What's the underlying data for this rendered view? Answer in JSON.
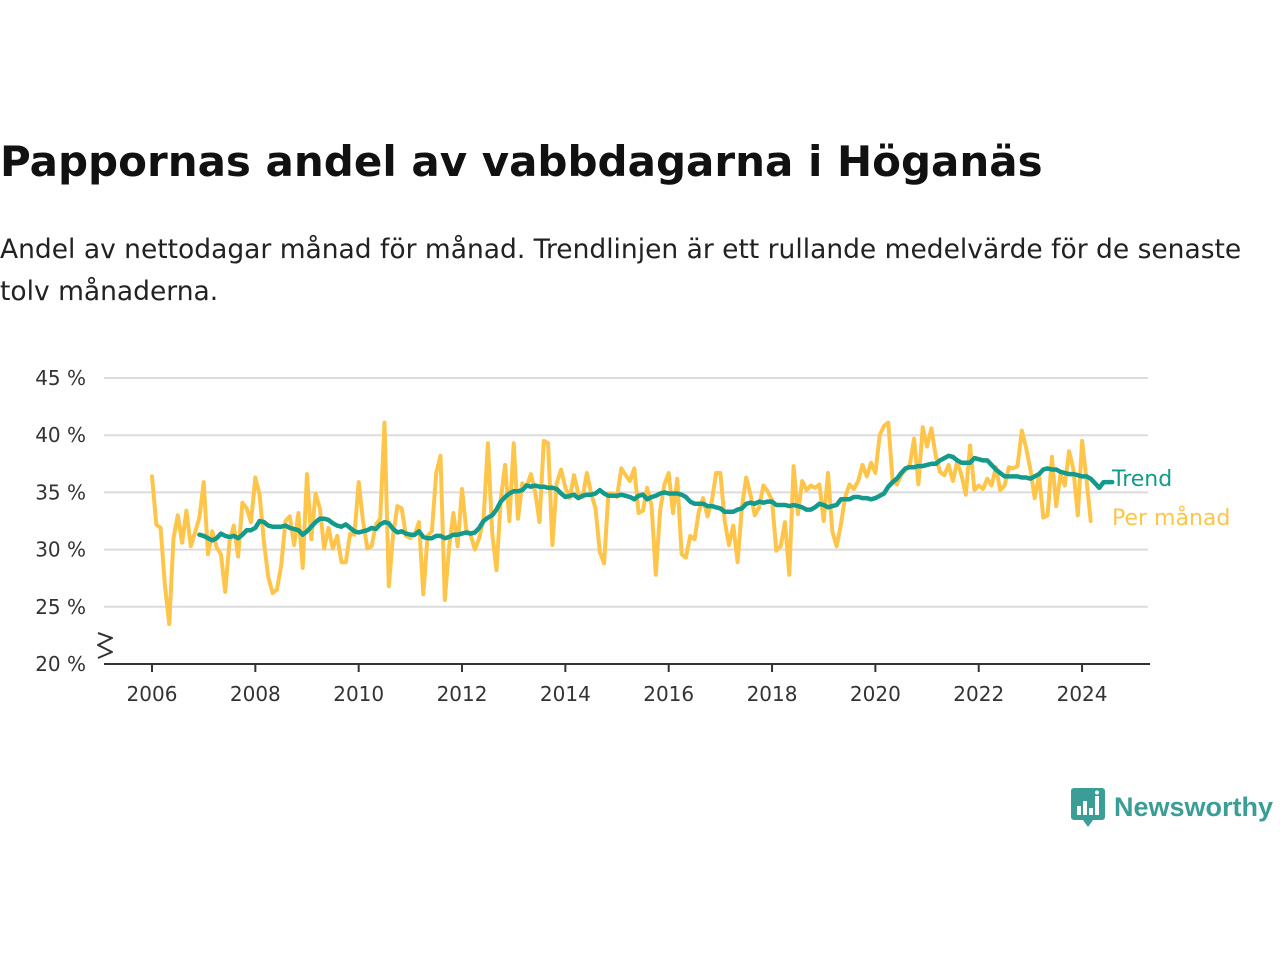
{
  "header": {
    "title": "Pappornas andel av vabbdagarna i Höganäs",
    "subtitle": "Andel av nettodagar månad för månad. Trendlinjen är ett rullande medelvärde för de senaste tolv månaderna."
  },
  "brand": {
    "name": "Newsworthy",
    "icon": "newsworthy-logo-icon",
    "color": "#3a9e96"
  },
  "chart_data": {
    "type": "line",
    "xlabel": "",
    "ylabel": "",
    "ylim": [
      20,
      45
    ],
    "y_axis_break": true,
    "grid": true,
    "y_ticks": [
      20,
      25,
      30,
      35,
      40,
      45
    ],
    "y_tick_labels": [
      "20 %",
      "25 %",
      "30 %",
      "35 %",
      "40 %",
      "45 %"
    ],
    "x_ticks": [
      2006,
      2008,
      2010,
      2012,
      2014,
      2016,
      2018,
      2020,
      2022,
      2024
    ],
    "x_tick_labels": [
      "2006",
      "2008",
      "2010",
      "2012",
      "2014",
      "2016",
      "2018",
      "2020",
      "2022",
      "2024"
    ],
    "x_start": 2006.0,
    "x_step": 0.0833333,
    "legend": "inline-right",
    "series": [
      {
        "name": "Trend",
        "color": "#139a8c",
        "start_index": 11,
        "values": [
          31.3,
          31.2,
          31.0,
          30.8,
          31.0,
          31.4,
          31.2,
          31.1,
          31.2,
          31.0,
          31.3,
          31.7,
          31.7,
          31.9,
          32.5,
          32.4,
          32.1,
          32.0,
          32.0,
          32.0,
          32.1,
          31.9,
          31.8,
          31.7,
          31.3,
          31.6,
          32.0,
          32.4,
          32.7,
          32.7,
          32.6,
          32.3,
          32.1,
          32.0,
          32.2,
          31.9,
          31.6,
          31.5,
          31.6,
          31.7,
          31.9,
          31.8,
          32.2,
          32.4,
          32.3,
          31.8,
          31.5,
          31.6,
          31.4,
          31.3,
          31.3,
          31.6,
          31.1,
          31.0,
          31.0,
          31.2,
          31.2,
          31.0,
          31.1,
          31.3,
          31.3,
          31.4,
          31.5,
          31.4,
          31.5,
          31.9,
          32.5,
          32.8,
          33.0,
          33.5,
          34.2,
          34.6,
          34.9,
          35.1,
          35.1,
          35.2,
          35.6,
          35.5,
          35.6,
          35.5,
          35.5,
          35.4,
          35.4,
          35.3,
          34.9,
          34.6,
          34.7,
          34.8,
          34.5,
          34.7,
          34.8,
          34.8,
          34.9,
          35.2,
          34.9,
          34.7,
          34.7,
          34.7,
          34.8,
          34.7,
          34.6,
          34.4,
          34.7,
          34.8,
          34.4,
          34.6,
          34.7,
          34.9,
          35.0,
          34.9,
          34.9,
          34.9,
          34.8,
          34.6,
          34.2,
          34.0,
          34.0,
          34.0,
          33.8,
          33.8,
          33.7,
          33.6,
          33.3,
          33.3,
          33.3,
          33.5,
          33.6,
          34.0,
          34.1,
          34.0,
          34.2,
          34.1,
          34.2,
          34.2,
          33.9,
          33.9,
          33.9,
          33.8,
          33.9,
          33.8,
          33.7,
          33.5,
          33.5,
          33.7,
          34.0,
          33.9,
          33.7,
          33.8,
          33.9,
          34.4,
          34.4,
          34.4,
          34.6,
          34.6,
          34.5,
          34.5,
          34.4,
          34.5,
          34.7,
          34.9,
          35.5,
          35.9,
          36.2,
          36.7,
          37.1,
          37.2,
          37.2,
          37.3,
          37.3,
          37.4,
          37.5,
          37.5,
          37.8,
          38.0,
          38.2,
          38.1,
          37.8,
          37.6,
          37.6,
          37.6,
          38.0,
          37.9,
          37.8,
          37.8,
          37.4,
          37.0,
          36.7,
          36.4,
          36.4,
          36.4,
          36.4,
          36.3,
          36.3,
          36.2,
          36.4,
          36.6,
          37.0,
          37.1,
          37.0,
          37.0,
          36.8,
          36.7,
          36.6,
          36.6,
          36.5,
          36.4,
          36.4,
          36.2,
          35.8,
          35.4,
          35.9,
          35.9,
          35.9
        ]
      },
      {
        "name": "Per månad",
        "color": "#ffc54a",
        "start_index": 0,
        "values": [
          36.4,
          32.2,
          31.9,
          26.9,
          23.5,
          31.0,
          33.0,
          30.6,
          33.4,
          30.3,
          31.5,
          32.8,
          35.9,
          29.6,
          31.6,
          30.2,
          29.6,
          26.3,
          30.7,
          32.1,
          29.4,
          34.1,
          33.6,
          32.4,
          36.3,
          34.8,
          30.6,
          27.6,
          26.2,
          26.5,
          28.6,
          32.5,
          32.9,
          30.4,
          33.2,
          28.4,
          36.6,
          30.9,
          34.9,
          33.6,
          30.1,
          31.9,
          30.1,
          31.2,
          28.9,
          28.9,
          31.4,
          31.3,
          35.9,
          32.5,
          30.1,
          30.3,
          32.2,
          32.7,
          41.1,
          26.8,
          31.3,
          33.8,
          33.6,
          31.2,
          31.0,
          31.3,
          32.4,
          26.1,
          31.2,
          31.6,
          36.7,
          38.2,
          25.6,
          30.2,
          33.2,
          30.3,
          35.3,
          31.7,
          31.3,
          30.0,
          31.0,
          32.6,
          39.3,
          31.4,
          28.2,
          34.4,
          37.4,
          32.5,
          39.3,
          32.7,
          35.8,
          35.5,
          36.6,
          35.0,
          32.4,
          39.5,
          39.3,
          30.4,
          35.8,
          37.0,
          35.4,
          34.5,
          36.5,
          34.9,
          34.6,
          36.7,
          34.9,
          33.6,
          29.8,
          28.8,
          34.9,
          34.9,
          34.6,
          37.1,
          36.5,
          36.0,
          37.1,
          33.2,
          33.4,
          35.4,
          33.9,
          27.8,
          33.4,
          35.7,
          36.7,
          33.2,
          36.2,
          29.6,
          29.3,
          31.2,
          30.9,
          33.3,
          34.5,
          32.9,
          34.2,
          36.7,
          36.7,
          32.5,
          30.4,
          32.1,
          28.9,
          33.7,
          36.3,
          34.8,
          33.0,
          33.7,
          35.6,
          35.1,
          34.3,
          29.9,
          30.3,
          32.4,
          27.8,
          37.3,
          33.1,
          36.0,
          35.2,
          35.6,
          35.4,
          35.7,
          32.5,
          36.7,
          31.6,
          30.3,
          32.2,
          34.6,
          35.7,
          35.3,
          36.0,
          37.4,
          36.4,
          37.6,
          36.7,
          40.0,
          40.8,
          41.1,
          36.0,
          35.7,
          36.5,
          37.0,
          37.4,
          39.7,
          35.7,
          40.7,
          39.0,
          40.6,
          38.2,
          36.8,
          36.5,
          37.4,
          36.0,
          37.7,
          36.5,
          34.8,
          39.1,
          35.2,
          35.6,
          35.3,
          36.2,
          35.6,
          37.2,
          35.2,
          35.6,
          37.2,
          37.1,
          37.3,
          40.4,
          38.9,
          37.0,
          34.5,
          36.5,
          32.8,
          33.0,
          38.1,
          33.8,
          36.6,
          35.6,
          38.6,
          37.0,
          33.0,
          39.5,
          36.2,
          32.5
        ]
      }
    ]
  }
}
